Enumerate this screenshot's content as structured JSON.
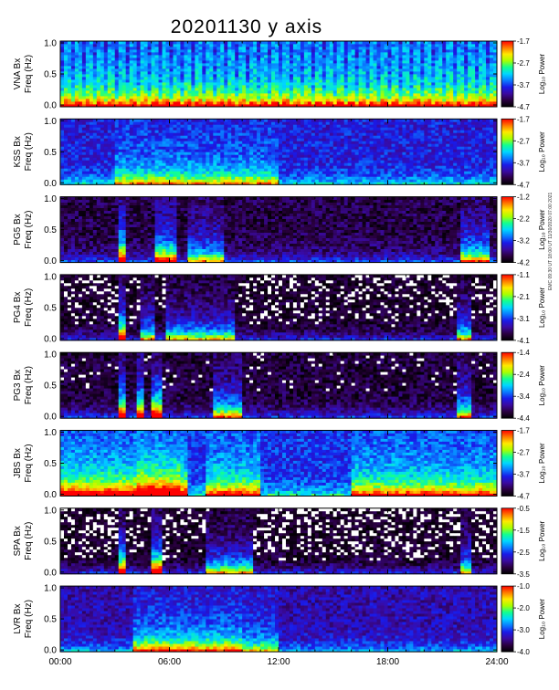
{
  "title": "20201130 y axis",
  "stamp": "EMC 09:30 UT 18:00 UT 11/30/2020 07:00 2021",
  "colorbar_label": "Log₁₀ Power",
  "chart_data": {
    "type": "heatmap",
    "title": "20201130 y axis",
    "x_ticks": [
      "00:00",
      "06:00",
      "12:00",
      "18:00",
      "24:00"
    ],
    "x_range_hours": [
      0,
      24
    ],
    "colorscale": [
      "#000000",
      "#2a0040",
      "#3a0aa0",
      "#1a1ae8",
      "#0a7cff",
      "#00d7ff",
      "#12ff90",
      "#a8ff00",
      "#ffea00",
      "#ff7a00",
      "#ff0000"
    ],
    "panels": [
      {
        "station": "VNA",
        "ylabel_top": "VNA Bx",
        "ylabel": "Freq (Hz)",
        "ylim": [
          0,
          1.0
        ],
        "yticks": [
          "0.0",
          "0.5",
          "1.0"
        ],
        "cbar_ticks": [
          "-1.7",
          "-2.7",
          "-3.7",
          "-4.7"
        ],
        "cbar_range": [
          -4.7,
          -1.7
        ],
        "base": 0.38,
        "active": [
          [
            0,
            24,
            0.42
          ]
        ],
        "gaps": [],
        "stripes": true
      },
      {
        "station": "KSS",
        "ylabel_top": "KSS Bx",
        "ylabel": "Freq (Hz)",
        "ylim": [
          0,
          1.0
        ],
        "yticks": [
          "0.0",
          "0.5",
          "1.0"
        ],
        "cbar_ticks": [
          "-1.7",
          "-2.7",
          "-3.7",
          "-4.7"
        ],
        "cbar_range": [
          -4.7,
          -1.7
        ],
        "base": 0.28,
        "active": [
          [
            3,
            12,
            0.3
          ]
        ],
        "gaps": [
          [
            16.8,
            16.9
          ]
        ],
        "stripes": false
      },
      {
        "station": "PG5",
        "ylabel_top": "PG5 Bx",
        "ylabel": "Freq (Hz)",
        "ylim": [
          0,
          1.0
        ],
        "yticks": [
          "0.0",
          "0.5",
          "1.0"
        ],
        "cbar_ticks": [
          "-1.2",
          "-2.2",
          "-3.2",
          "-4.2"
        ],
        "cbar_range": [
          -4.2,
          -1.2
        ],
        "base": 0.1,
        "active": [
          [
            3.2,
            3.5,
            0.85
          ],
          [
            5.3,
            6.4,
            0.7
          ],
          [
            7,
            9,
            0.45
          ],
          [
            22,
            23.5,
            0.55
          ]
        ],
        "gaps": [],
        "stripes": false
      },
      {
        "station": "PG4",
        "ylabel_top": "PG4 Bx",
        "ylabel": "Freq (Hz)",
        "ylim": [
          0,
          1.0
        ],
        "yticks": [
          "0.0",
          "0.5",
          "1.0"
        ],
        "cbar_ticks": [
          "-1.1",
          "-2.1",
          "-3.1",
          "-4.1"
        ],
        "cbar_range": [
          -4.1,
          -1.1
        ],
        "base": 0.05,
        "active": [
          [
            3.2,
            3.5,
            0.85
          ],
          [
            4.5,
            5.2,
            0.5
          ],
          [
            5.8,
            9.5,
            0.45
          ],
          [
            21.8,
            22.5,
            0.5
          ]
        ],
        "gaps": [],
        "stripes": false
      },
      {
        "station": "PG3",
        "ylabel_top": "PG3 Bx",
        "ylabel": "Freq (Hz)",
        "ylim": [
          0,
          1.0
        ],
        "yticks": [
          "0.0",
          "0.5",
          "1.0"
        ],
        "cbar_ticks": [
          "-1.4",
          "-2.4",
          "-3.4",
          "-4.4"
        ],
        "cbar_range": [
          -4.4,
          -1.4
        ],
        "base": 0.08,
        "active": [
          [
            3.2,
            3.6,
            0.9
          ],
          [
            4.2,
            4.6,
            0.85
          ],
          [
            5.1,
            5.6,
            0.9
          ],
          [
            8.5,
            10,
            0.55
          ],
          [
            21.8,
            22.6,
            0.55
          ]
        ],
        "gaps": [],
        "stripes": false
      },
      {
        "station": "JBS",
        "ylabel_top": "JBS Bx",
        "ylabel": "Freq (Hz)",
        "ylim": [
          0,
          1.0
        ],
        "yticks": [
          "0.0",
          "0.5",
          "1.0"
        ],
        "cbar_ticks": [
          "-1.7",
          "-2.7",
          "-3.7",
          "-4.7"
        ],
        "cbar_range": [
          -4.7,
          -1.7
        ],
        "base": 0.32,
        "active": [
          [
            0,
            7,
            0.55
          ],
          [
            4.3,
            6.5,
            0.75
          ],
          [
            8,
            11,
            0.45
          ],
          [
            16,
            24,
            0.42
          ]
        ],
        "gaps": [
          [
            22.8,
            22.9
          ]
        ],
        "stripes": false
      },
      {
        "station": "SPA",
        "ylabel_top": "SPA Bx",
        "ylabel": "Freq (Hz)",
        "ylim": [
          0,
          1.0
        ],
        "yticks": [
          "0.0",
          "0.5",
          "1.0"
        ],
        "cbar_ticks": [
          "-0.5",
          "-1.5",
          "-2.5",
          "-3.5"
        ],
        "cbar_range": [
          -3.5,
          -0.5
        ],
        "base": 0.04,
        "active": [
          [
            3.2,
            3.6,
            0.9
          ],
          [
            5.0,
            5.5,
            0.9
          ],
          [
            8,
            10.5,
            0.5
          ],
          [
            22,
            22.5,
            0.5
          ]
        ],
        "gaps": [],
        "stripes": false
      },
      {
        "station": "LVR",
        "ylabel_top": "LVR Bx",
        "ylabel": "Freq (Hz)",
        "ylim": [
          0,
          1.0
        ],
        "yticks": [
          "0.0",
          "0.5",
          "1.0"
        ],
        "cbar_ticks": [
          "-1.0",
          "-2.0",
          "-3.0",
          "-4.0"
        ],
        "cbar_range": [
          -4.0,
          -1.0
        ],
        "base": 0.22,
        "active": [
          [
            4,
            10,
            0.45
          ],
          [
            10,
            12,
            0.3
          ]
        ],
        "gaps": [],
        "stripes": false
      }
    ]
  }
}
